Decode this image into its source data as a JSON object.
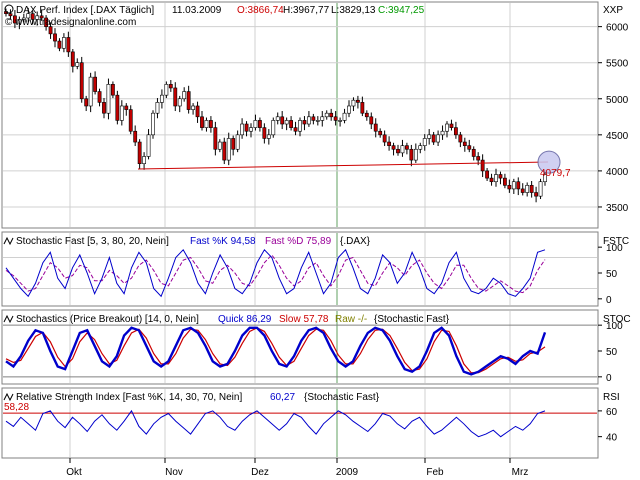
{
  "main": {
    "title": "DAX Perf. Index [.DAX  Täglich]",
    "date": "11.03.2009",
    "open": "O:3866,74",
    "high": "H:3967,77",
    "low": "L:3829,13",
    "close": "C:3947,25",
    "watermark": "© www.tradesignalonline.com",
    "axis_tag": "XXP",
    "last_label": "4079,7"
  },
  "panels": [
    {
      "label": "Stochastic Fast [5, 3, 80, 20, Nein]",
      "v1": "Fast %K 94,58",
      "v2": "Fast %D 75,89",
      "src": "{.DAX}",
      "tag": "FSTC"
    },
    {
      "label": "Stochastics (Price Breakout) [14, 0, Nein]",
      "v1": "Quick 86,29",
      "v2": "Slow 57,78",
      "v3": "Raw -/-",
      "src": "{Stochastic Fast}",
      "tag": "STOC"
    },
    {
      "label": "Relative Strength Index [Fast %K, 14, 30, 70, Nein]",
      "v1": "60,27",
      "src": "{Stochastic Fast}",
      "tag": "RSI",
      "level_label": "58,28"
    }
  ],
  "colors": {
    "up": "#ffffff",
    "down": "#c00000",
    "support": "#cc0000",
    "fast_k": "#0000cc",
    "fast_d": "#990099",
    "quick": "#0000cc",
    "slow": "#cc0000",
    "raw": "#808000",
    "rsi": "#0000cc"
  },
  "chart_data": [
    {
      "type": "candlestick",
      "title": "DAX Perf. Index [.DAX  Täglich]",
      "x_labels": [
        "Okt",
        "Nov",
        "Dez",
        "2009",
        "Feb",
        "Mrz"
      ],
      "y_ticks": [
        3500,
        4000,
        4500,
        5000,
        5500,
        6000
      ],
      "ylim": [
        3250,
        6300
      ],
      "support_level": 4040,
      "last_value": 4079.7,
      "close": [
        6180,
        6150,
        6050,
        6100,
        6120,
        6180,
        6100,
        6150,
        6120,
        6000,
        5900,
        5800,
        5700,
        5850,
        5650,
        5450,
        5500,
        5000,
        4900,
        5300,
        5100,
        4950,
        4800,
        5200,
        5050,
        4700,
        4900,
        4850,
        4550,
        4400,
        4100,
        4200,
        4500,
        4800,
        4950,
        5050,
        5200,
        5150,
        4900,
        5000,
        5100,
        4850,
        4900,
        4750,
        4600,
        4700,
        4600,
        4300,
        4400,
        4150,
        4450,
        4300,
        4500,
        4650,
        4550,
        4600,
        4700,
        4600,
        4450,
        4500,
        4700,
        4750,
        4650,
        4700,
        4600,
        4550,
        4700,
        4650,
        4750,
        4700,
        4700,
        4750,
        4800,
        4750,
        4700,
        4700,
        4800,
        4900,
        4980,
        4950,
        4800,
        4750,
        4650,
        4550,
        4500,
        4400,
        4350,
        4300,
        4250,
        4350,
        4300,
        4150,
        4300,
        4350,
        4450,
        4500,
        4400,
        4500,
        4550,
        4650,
        4600,
        4500,
        4400,
        4350,
        4300,
        4200,
        4150,
        4000,
        3900,
        3850,
        3950,
        3900,
        3800,
        3750,
        3850,
        3750,
        3700,
        3800,
        3700,
        3650,
        3850,
        3950
      ]
    },
    {
      "type": "line",
      "title": "Stochastic Fast [5, 3, 80, 20, Nein]",
      "y_ticks": [
        0,
        50,
        100
      ],
      "ylim": [
        -10,
        110
      ],
      "series": [
        {
          "name": "Fast %K",
          "values": [
            60,
            40,
            20,
            5,
            30,
            70,
            90,
            40,
            20,
            60,
            85,
            50,
            10,
            40,
            80,
            30,
            10,
            60,
            90,
            70,
            20,
            5,
            40,
            80,
            95,
            70,
            30,
            10,
            50,
            85,
            60,
            20,
            10,
            30,
            70,
            95,
            80,
            40,
            10,
            20,
            60,
            90,
            50,
            10,
            30,
            80,
            95,
            60,
            20,
            10,
            40,
            85,
            70,
            30,
            50,
            90,
            60,
            20,
            10,
            30,
            70,
            90,
            40,
            15,
            10,
            20,
            40,
            30,
            10,
            5,
            20,
            40,
            90,
            95
          ]
        },
        {
          "name": "Fast %D",
          "values": [
            55,
            45,
            30,
            15,
            20,
            45,
            70,
            60,
            40,
            45,
            65,
            60,
            35,
            35,
            55,
            45,
            30,
            40,
            65,
            75,
            55,
            30,
            25,
            50,
            75,
            80,
            60,
            35,
            30,
            55,
            65,
            50,
            30,
            25,
            45,
            70,
            85,
            65,
            40,
            25,
            35,
            60,
            70,
            45,
            25,
            45,
            75,
            80,
            55,
            30,
            25,
            50,
            70,
            60,
            45,
            65,
            75,
            50,
            30,
            20,
            40,
            65,
            65,
            40,
            20,
            15,
            25,
            35,
            25,
            15,
            12,
            25,
            55,
            76
          ]
        }
      ]
    },
    {
      "type": "line",
      "title": "Stochastics (Price Breakout) [14, 0, Nein]",
      "y_ticks": [
        0,
        50,
        100
      ],
      "ylim": [
        -10,
        110
      ],
      "series": [
        {
          "name": "Quick",
          "values": [
            30,
            20,
            40,
            70,
            90,
            85,
            50,
            20,
            15,
            50,
            85,
            90,
            60,
            30,
            20,
            40,
            80,
            95,
            90,
            60,
            30,
            20,
            30,
            60,
            90,
            95,
            85,
            60,
            30,
            20,
            25,
            50,
            80,
            95,
            95,
            80,
            50,
            25,
            20,
            40,
            70,
            90,
            95,
            85,
            55,
            30,
            20,
            30,
            60,
            85,
            95,
            90,
            70,
            40,
            15,
            10,
            20,
            50,
            85,
            95,
            80,
            40,
            10,
            5,
            10,
            20,
            30,
            40,
            35,
            25,
            40,
            50,
            45,
            86
          ]
        },
        {
          "name": "Slow",
          "values": [
            35,
            28,
            32,
            55,
            78,
            86,
            68,
            38,
            20,
            35,
            68,
            85,
            72,
            45,
            25,
            32,
            60,
            85,
            92,
            75,
            45,
            25,
            25,
            45,
            75,
            92,
            90,
            72,
            45,
            25,
            22,
            38,
            65,
            88,
            95,
            88,
            65,
            38,
            22,
            30,
            55,
            80,
            92,
            90,
            70,
            42,
            25,
            25,
            45,
            72,
            90,
            92,
            80,
            55,
            28,
            12,
            15,
            35,
            68,
            90,
            88,
            60,
            25,
            8,
            8,
            15,
            25,
            35,
            38,
            30,
            33,
            45,
            48,
            58
          ]
        }
      ]
    },
    {
      "type": "line",
      "title": "Relative Strength Index [Fast %K, 14, 30, 70, Nein]",
      "y_ticks": [
        40,
        60
      ],
      "ylim": [
        25,
        70
      ],
      "level": 58.28,
      "series": [
        {
          "name": "RSI",
          "values": [
            52,
            48,
            55,
            50,
            45,
            58,
            60,
            52,
            47,
            55,
            50,
            44,
            52,
            57,
            50,
            45,
            52,
            60,
            48,
            42,
            50,
            55,
            58,
            52,
            47,
            42,
            50,
            58,
            60,
            55,
            48,
            45,
            52,
            57,
            60,
            55,
            50,
            45,
            50,
            58,
            55,
            48,
            42,
            50,
            55,
            60,
            57,
            52,
            48,
            44,
            50,
            58,
            56,
            50,
            46,
            52,
            55,
            48,
            42,
            45,
            50,
            55,
            50,
            44,
            40,
            42,
            45,
            40,
            44,
            48,
            45,
            50,
            58,
            60
          ]
        }
      ]
    }
  ]
}
